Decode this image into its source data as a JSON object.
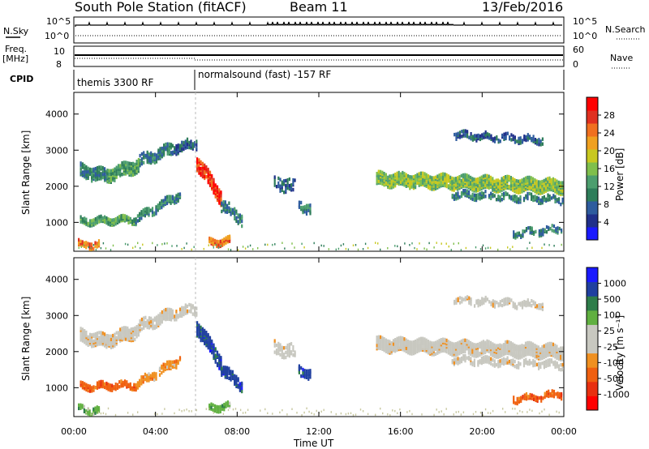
{
  "header": {
    "station": "South Pole Station (fitACF)",
    "beam": "Beam 11",
    "date": "13/Feb/2016"
  },
  "side_labels": {
    "nsky": "N.Sky",
    "freq": "Freq.",
    "freq_unit": "[MHz]",
    "cpid": "CPID",
    "nsearch": "N.Search",
    "nave": "Nave"
  },
  "cpid_segments": [
    "themis 3300 RF",
    "normalsound (fast) -157 RF"
  ],
  "colors": {
    "power": [
      "#1a1aff",
      "#20308a",
      "#2e5c9e",
      "#2e7d5a",
      "#4c9e6e",
      "#7fbf4c",
      "#c8c820",
      "#f0a020",
      "#f07020",
      "#e03020",
      "#ff0000"
    ],
    "velocity": [
      "#ff0000",
      "#e83010",
      "#f06010",
      "#f09020",
      "#c8c8c0",
      "#c8c8c0",
      "#60b040",
      "#2e7d4a",
      "#2040a0",
      "#1a1aff"
    ]
  },
  "chart_data": [
    {
      "type": "line",
      "panel": "noise",
      "ylabel_left": "N.Sky",
      "ylabel_right": "N.Search",
      "yticks": [
        "10^5",
        "10^0"
      ],
      "yticks_right": [
        "10^5",
        "10^0"
      ]
    },
    {
      "type": "line",
      "panel": "frequency",
      "ylabel_left": "Freq. [MHz]",
      "ylabel_right": "Nave",
      "yticks": [
        "10",
        "8"
      ],
      "yticks_right": [
        "60",
        "0"
      ]
    },
    {
      "type": "heatmap",
      "panel": "power",
      "ylabel": "Slant Range [km]",
      "yticks": [
        1000,
        2000,
        3000,
        4000
      ],
      "ylim": [
        200,
        4600
      ],
      "xlim_hours": [
        0,
        24
      ],
      "colorbar_label": "Power [dB]",
      "colorbar_ticks": [
        "4",
        "8",
        "12",
        "16",
        "20",
        "24",
        "28"
      ]
    },
    {
      "type": "heatmap",
      "panel": "velocity",
      "ylabel": "Slant Range [km]",
      "yticks": [
        1000,
        2000,
        3000,
        4000
      ],
      "ylim": [
        200,
        4600
      ],
      "xlim_hours": [
        0,
        24
      ],
      "xticks": [
        "00:00",
        "04:00",
        "08:00",
        "12:00",
        "16:00",
        "20:00",
        "00:00"
      ],
      "xlabel": "Time UT",
      "colorbar_label": "Velocity [m s⁻¹]",
      "colorbar_ticks": [
        "1000",
        "500",
        "100",
        "25",
        "-25",
        "-100",
        "-500",
        "-1000"
      ]
    }
  ]
}
